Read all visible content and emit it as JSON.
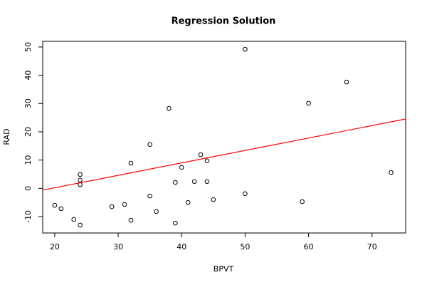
{
  "chart_data": {
    "type": "scatter",
    "title": "Regression Solution",
    "x_label": "BPVT",
    "y_label": "RAD",
    "x": [
      20,
      21,
      23,
      24,
      24,
      24,
      24,
      29,
      31,
      32,
      32,
      35,
      35,
      36,
      38,
      39,
      39,
      40,
      41,
      42,
      43,
      44,
      44,
      45,
      50,
      50,
      59,
      60,
      66,
      73
    ],
    "values": [
      -6,
      -7.2,
      -11,
      -13,
      4.9,
      2.9,
      1.3,
      -6.5,
      -5.7,
      8.9,
      -11.3,
      15.5,
      -2.7,
      -8.2,
      28.3,
      2.1,
      -12.3,
      7.4,
      -5,
      2.4,
      11.9,
      9.7,
      2.4,
      -4,
      49.2,
      -1.9,
      -4.7,
      30.1,
      37.6,
      5.6
    ],
    "color": "#000000",
    "regression": {
      "intercept": -8.6,
      "slope": 0.44,
      "color": "#ff0000"
    },
    "xlim": [
      18.1,
      75.3
    ],
    "ylim": [
      -15.8,
      52
    ],
    "xticks": [
      20,
      30,
      40,
      50,
      60,
      70
    ],
    "yticks": [
      -10,
      0,
      10,
      20,
      30,
      40,
      50
    ]
  }
}
